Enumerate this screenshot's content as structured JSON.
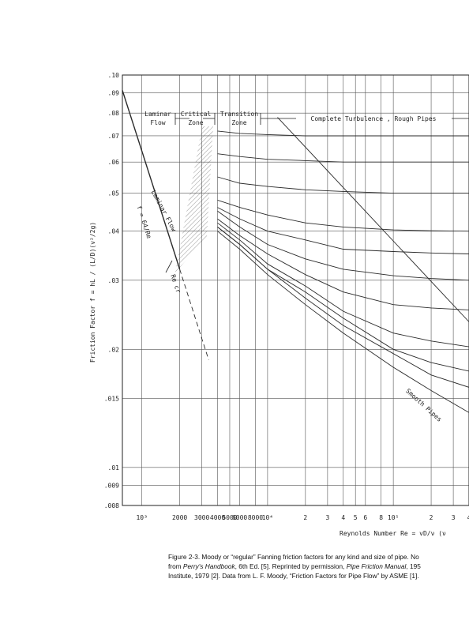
{
  "chart_data": {
    "type": "line",
    "log_x": true,
    "log_y": true,
    "grid": true,
    "color": "#2a2a2a",
    "xlim": [
      700,
      400000
    ],
    "ylim": [
      0.008,
      0.1
    ],
    "xticks": [
      {
        "value": 1000,
        "label": "10³"
      },
      2000,
      3000,
      4000,
      5000,
      6000,
      8000,
      {
        "value": 10000,
        "label": "10⁴"
      },
      {
        "value": 20000,
        "label": "2"
      },
      {
        "value": 30000,
        "label": "3"
      },
      {
        "value": 40000,
        "label": "4"
      },
      {
        "value": 50000,
        "label": "5"
      },
      {
        "value": 60000,
        "label": "6"
      },
      {
        "value": 80000,
        "label": "8"
      },
      {
        "value": 100000,
        "label": "10⁵"
      },
      {
        "value": 200000,
        "label": "2"
      },
      {
        "value": 300000,
        "label": "3"
      },
      {
        "value": 400000,
        "label": "4"
      }
    ],
    "yticks": [
      {
        "value": 0.1,
        "label": ".10"
      },
      {
        "value": 0.09,
        "label": ".09"
      },
      {
        "value": 0.08,
        "label": ".08"
      },
      {
        "value": 0.07,
        "label": ".07"
      },
      {
        "value": 0.06,
        "label": ".06"
      },
      {
        "value": 0.05,
        "label": ".05"
      },
      {
        "value": 0.04,
        "label": ".04"
      },
      {
        "value": 0.03,
        "label": ".03"
      },
      {
        "value": 0.02,
        "label": ".02"
      },
      {
        "value": 0.015,
        "label": ".015"
      },
      {
        "value": 0.01,
        "label": ".01"
      },
      {
        "value": 0.009,
        "label": ".009"
      },
      {
        "value": 0.008,
        "label": ".008"
      }
    ],
    "y_label": "Friction  Factor   f = hL / (L/D)(v²/2g)",
    "x_label": "Reynolds  Number   Re = vD/ν   (ν",
    "annotations": [
      "Laminar",
      "Flow",
      "Critical",
      "Zone",
      "Transition",
      "Zone",
      "Complete Turbulence , Rough Pipes",
      "Laminar Flow",
      "f = 64/Re",
      "Re cr",
      "Smooth Pipes"
    ],
    "series": [
      {
        "name": "Laminar Flow",
        "x": [
          700,
          1000,
          2000
        ],
        "values": [
          0.0914,
          0.064,
          0.032
        ]
      },
      {
        "x": [
          2000,
          3000,
          3400
        ],
        "values": [
          0.032,
          0.0213,
          0.0188
        ],
        "dash": true
      },
      {
        "x": [
          12000,
          400000
        ],
        "values": [
          0.078,
          0.0235
        ]
      },
      {
        "name": "Smooth Pipes",
        "x": [
          4000,
          6000,
          10000,
          20000,
          40000,
          100000,
          200000,
          400000
        ],
        "values": [
          0.04,
          0.036,
          0.031,
          0.026,
          0.022,
          0.018,
          0.0157,
          0.0138
        ]
      },
      {
        "x": [
          4000,
          6000,
          10000,
          20000,
          40000,
          100000,
          200000,
          400000
        ],
        "values": [
          0.072,
          0.071,
          0.0705,
          0.07,
          0.07,
          0.07,
          0.07,
          0.07
        ]
      },
      {
        "x": [
          4000,
          6000,
          10000,
          20000,
          40000,
          100000,
          200000,
          400000
        ],
        "values": [
          0.063,
          0.062,
          0.061,
          0.0605,
          0.06,
          0.06,
          0.06,
          0.06
        ]
      },
      {
        "x": [
          4000,
          6000,
          10000,
          20000,
          40000,
          100000,
          200000,
          400000
        ],
        "values": [
          0.055,
          0.053,
          0.052,
          0.051,
          0.0505,
          0.05,
          0.05,
          0.05
        ]
      },
      {
        "x": [
          4000,
          6000,
          10000,
          20000,
          40000,
          100000,
          200000,
          400000
        ],
        "values": [
          0.048,
          0.046,
          0.044,
          0.042,
          0.041,
          0.0403,
          0.0401,
          0.04
        ]
      },
      {
        "x": [
          4000,
          6000,
          10000,
          20000,
          40000,
          100000,
          200000,
          400000
        ],
        "values": [
          0.046,
          0.043,
          0.04,
          0.038,
          0.036,
          0.0355,
          0.0352,
          0.035
        ]
      },
      {
        "x": [
          4000,
          6000,
          10000,
          20000,
          40000,
          100000,
          200000,
          400000
        ],
        "values": [
          0.045,
          0.041,
          0.037,
          0.034,
          0.032,
          0.0308,
          0.0303,
          0.03
        ]
      },
      {
        "x": [
          4000,
          6000,
          10000,
          20000,
          40000,
          100000,
          200000,
          400000
        ],
        "values": [
          0.043,
          0.039,
          0.035,
          0.031,
          0.028,
          0.026,
          0.0255,
          0.0252
        ]
      },
      {
        "x": [
          4000,
          6000,
          10000,
          20000,
          40000,
          100000,
          200000,
          400000
        ],
        "values": [
          0.042,
          0.038,
          0.033,
          0.029,
          0.025,
          0.022,
          0.021,
          0.0203
        ]
      },
      {
        "x": [
          4000,
          6000,
          10000,
          20000,
          40000,
          100000,
          200000,
          400000
        ],
        "values": [
          0.041,
          0.037,
          0.032,
          0.028,
          0.024,
          0.02,
          0.0185,
          0.0176
        ]
      },
      {
        "x": [
          4000,
          6000,
          10000,
          20000,
          40000,
          100000,
          200000,
          400000
        ],
        "values": [
          0.041,
          0.037,
          0.032,
          0.027,
          0.023,
          0.0195,
          0.0172,
          0.016
        ]
      }
    ],
    "caption": [
      [
        "Figure 2-3. Moody or “regular” Fanning friction factors for any kind and size of pipe. No"
      ],
      [
        "from ",
        "Perry's Handbook",
        ", 6th Ed. [5]. Reprinted by permission, ",
        "Pipe Friction Manual",
        ", 195"
      ],
      [
        "Institute, 1979 [2]. Data from L. F. Moody, “Friction Factors for Pipe Flow” by ASME [1]."
      ]
    ]
  }
}
